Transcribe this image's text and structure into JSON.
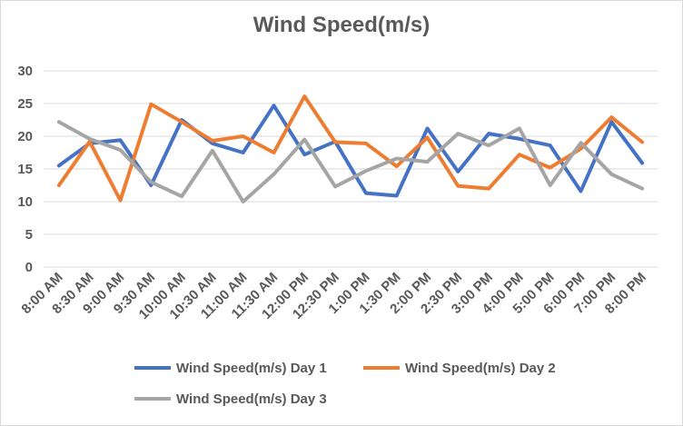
{
  "chart_data": {
    "type": "line",
    "title": "Wind Speed(m/s)",
    "xlabel": "",
    "ylabel": "",
    "ylim": [
      0,
      30
    ],
    "yticks": [
      0,
      5,
      10,
      15,
      20,
      25,
      30
    ],
    "grid": "horizontal",
    "legend_position": "bottom",
    "categories": [
      "8:00 AM",
      "8:30 AM",
      "9:00 AM",
      "9:30 AM",
      "10:00 AM",
      "10:30 AM",
      "11:00 AM",
      "11:30 AM",
      "12:00 PM",
      "12:30 PM",
      "1:00 PM",
      "1:30 PM",
      "2:00 PM",
      "2:30 PM",
      "3:00 PM",
      "4:00 PM",
      "5:00 PM",
      "6:00 PM",
      "7:00 PM",
      "8:00 PM"
    ],
    "series": [
      {
        "name": "Wind Speed(m/s) Day 1",
        "color": "#4472c4",
        "values": [
          15.5,
          18.9,
          19.4,
          12.5,
          22.5,
          18.9,
          17.5,
          24.7,
          17.2,
          19.2,
          11.3,
          10.9,
          21.2,
          14.6,
          20.4,
          19.6,
          18.6,
          11.6,
          22.2,
          15.9
        ]
      },
      {
        "name": "Wind Speed(m/s) Day 2",
        "color": "#ed7d31",
        "values": [
          12.5,
          19.2,
          10.2,
          24.9,
          22.2,
          19.3,
          20.0,
          17.5,
          26.1,
          19.1,
          18.9,
          15.4,
          19.8,
          12.4,
          12.0,
          17.2,
          15.2,
          18.1,
          22.9,
          19.1
        ]
      },
      {
        "name": "Wind Speed(m/s) Day 3",
        "color": "#a5a5a5",
        "values": [
          22.2,
          19.6,
          17.9,
          13.0,
          10.8,
          17.8,
          10.0,
          14.2,
          19.5,
          12.3,
          14.7,
          16.6,
          16.1,
          20.4,
          18.6,
          21.2,
          12.5,
          19.0,
          14.2,
          12.0
        ]
      }
    ]
  }
}
